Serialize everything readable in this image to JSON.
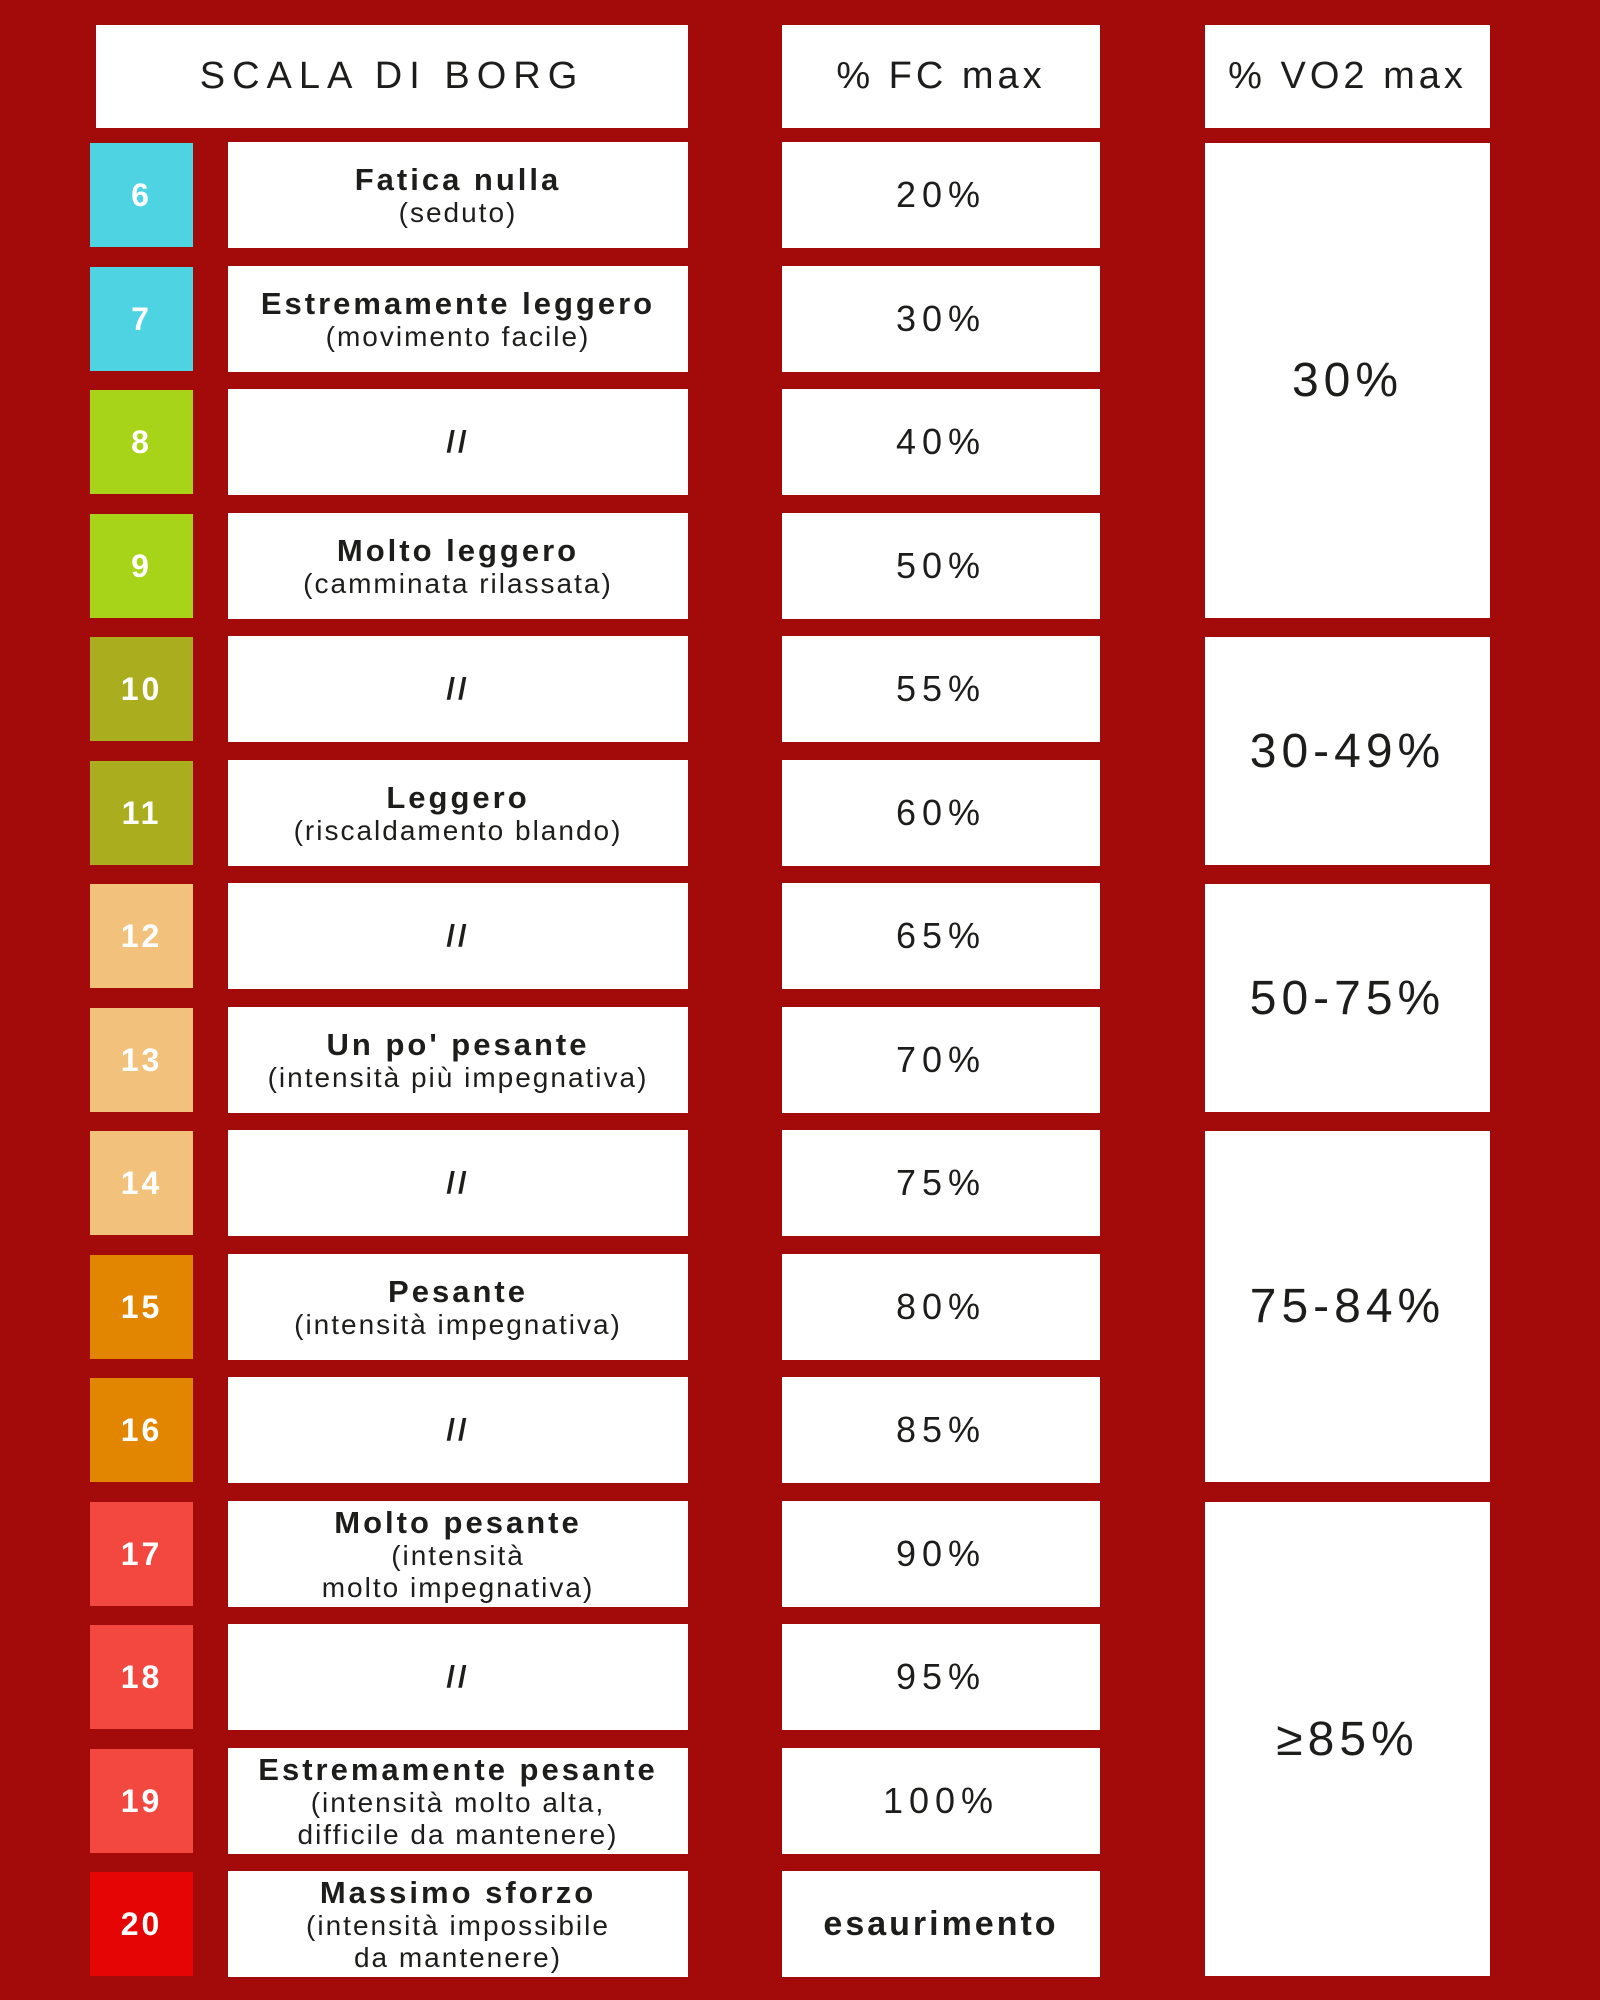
{
  "header": {
    "title": "SCALA DI BORG",
    "fc_label": "% FC max",
    "vo2_label": "% VO2 max"
  },
  "colors": {
    "background": "#a30b0b",
    "cell_text": "#1d1d1b",
    "cell_bg": "#ffffff",
    "number_text": "#ffffff",
    "cyan": "#4ed3e2",
    "green": "#a7d418",
    "olive": "#a9ad1e",
    "tan": "#f2c17b",
    "orange": "#e28500",
    "salmon": "#f3483f",
    "red": "#e50505"
  },
  "rows": [
    {
      "value": "6",
      "color": "#4ed3e2",
      "label": "Fatica nulla",
      "detail": "(seduto)",
      "fc": "20%"
    },
    {
      "value": "7",
      "color": "#4ed3e2",
      "label": "Estremamente leggero",
      "detail": "(movimento facile)",
      "fc": "30%"
    },
    {
      "value": "8",
      "color": "#a7d418",
      "label": "//",
      "detail": "",
      "fc": "40%"
    },
    {
      "value": "9",
      "color": "#a7d418",
      "label": "Molto leggero",
      "detail": "(camminata rilassata)",
      "fc": "50%"
    },
    {
      "value": "10",
      "color": "#a9ad1e",
      "label": "//",
      "detail": "",
      "fc": "55%"
    },
    {
      "value": "11",
      "color": "#a9ad1e",
      "label": "Leggero",
      "detail": "(riscaldamento blando)",
      "fc": "60%"
    },
    {
      "value": "12",
      "color": "#f2c17b",
      "label": "//",
      "detail": "",
      "fc": "65%"
    },
    {
      "value": "13",
      "color": "#f2c17b",
      "label": "Un po' pesante",
      "detail": "(intensità più impegnativa)",
      "fc": "70%"
    },
    {
      "value": "14",
      "color": "#f2c17b",
      "label": "//",
      "detail": "",
      "fc": "75%"
    },
    {
      "value": "15",
      "color": "#e28500",
      "label": "Pesante",
      "detail": "(intensità impegnativa)",
      "fc": "80%"
    },
    {
      "value": "16",
      "color": "#e28500",
      "label": "//",
      "detail": "",
      "fc": "85%"
    },
    {
      "value": "17",
      "color": "#f3483f",
      "label": "Molto pesante",
      "detail": "(intensità\nmolto impegnativa)",
      "fc": "90%"
    },
    {
      "value": "18",
      "color": "#f3483f",
      "label": "//",
      "detail": "",
      "fc": "95%"
    },
    {
      "value": "19",
      "color": "#f3483f",
      "label": "Estremamente pesante",
      "detail": "(intensità molto alta,\ndifficile da mantenere)",
      "fc": "100%"
    },
    {
      "value": "20",
      "color": "#e50505",
      "label": "Massimo sforzo",
      "detail": "(intensità impossibile\nda mantenere)",
      "fc": "esaurimento",
      "fc_bold": true
    }
  ],
  "vo2_blocks": [
    {
      "text": "30%",
      "from": 6,
      "to": 9
    },
    {
      "text": "30-49%",
      "from": 10,
      "to": 11
    },
    {
      "text": "50-75%",
      "from": 12,
      "to": 13
    },
    {
      "text": "75-84%",
      "from": 14,
      "to": 16
    },
    {
      "text": "≥85%",
      "from": 17,
      "to": 20
    }
  ]
}
